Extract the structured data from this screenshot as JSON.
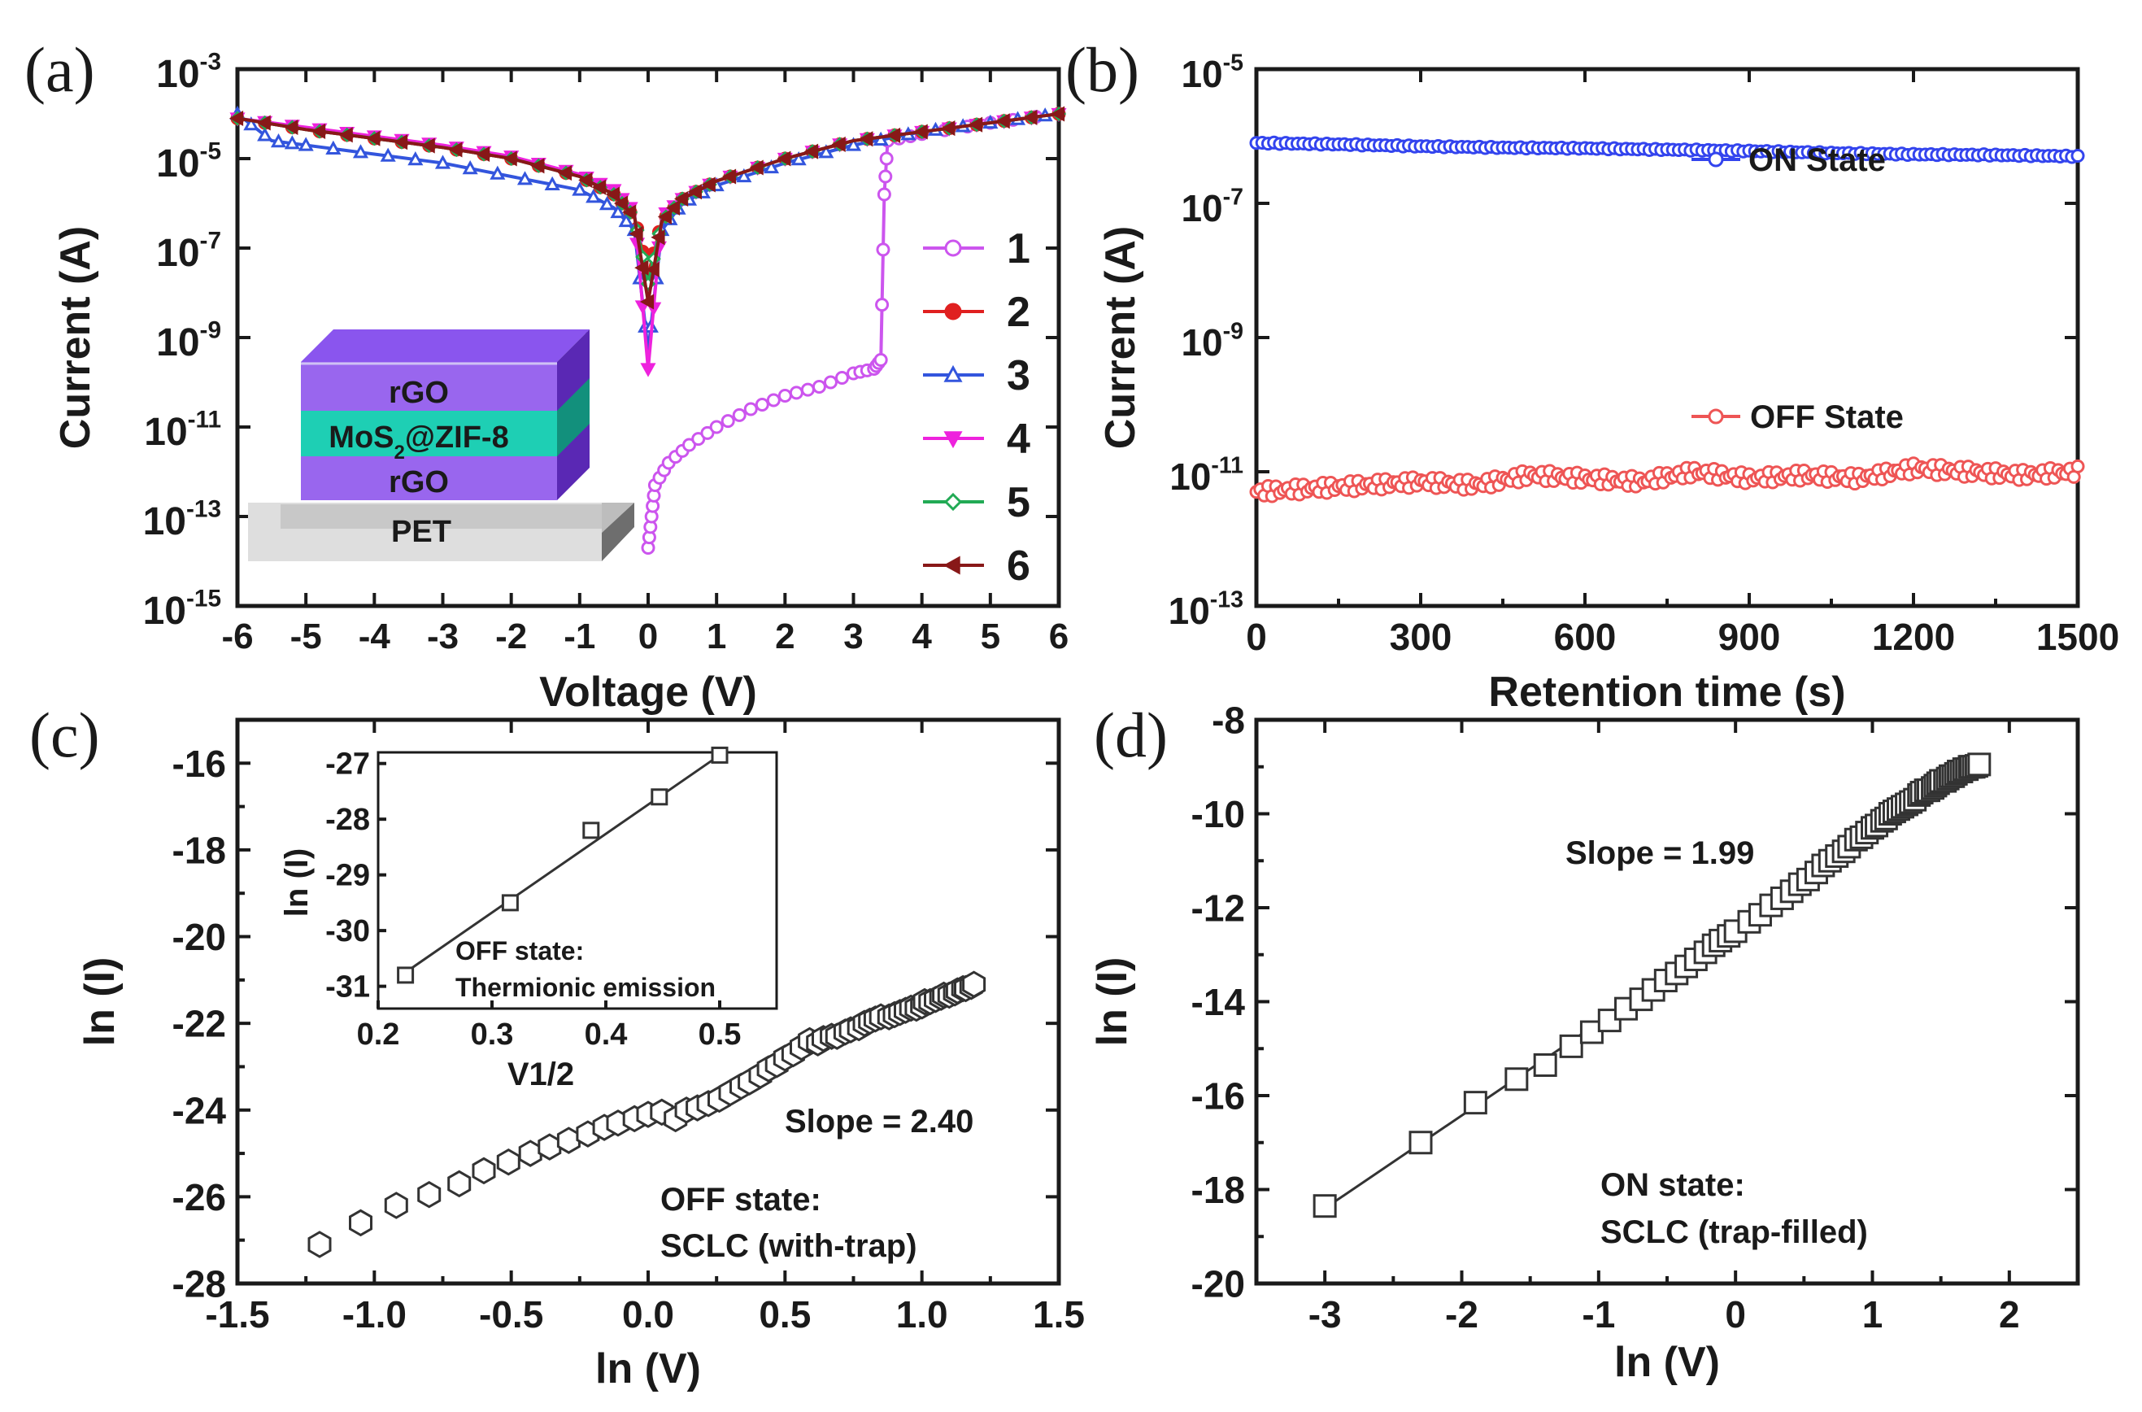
{
  "figure": {
    "panel_labels": [
      "(a)",
      "(b)",
      "(c)",
      "(d)"
    ]
  },
  "inset_device": {
    "layers": [
      "rGO",
      "MoS2@ZIF-8",
      "rGO",
      "PET"
    ],
    "colors": {
      "rgo": "#9966ee",
      "mos2": "#1ecfb4",
      "pet": "#dedede"
    }
  },
  "chart_data": [
    {
      "panel": "(a)",
      "type": "line",
      "xlabel": "Voltage (V)",
      "ylabel": "Current (A)",
      "yscale": "log",
      "xlim": [
        -6,
        6
      ],
      "ylim_exp": [
        -15,
        -3
      ],
      "xticks": [
        -6,
        -5,
        -4,
        -3,
        -2,
        -1,
        0,
        1,
        2,
        3,
        4,
        5,
        6
      ],
      "yticks_exp": [
        -15,
        -13,
        -11,
        -9,
        -7,
        -5,
        -3
      ],
      "legend": [
        "1",
        "2",
        "3",
        "4",
        "5",
        "6"
      ],
      "series": [
        {
          "name": "1",
          "color": "#cc55ee",
          "marker": "circle",
          "x": [
            0.0,
            0.05,
            0.1,
            0.3,
            0.6,
            1.0,
            1.5,
            2.0,
            2.5,
            3.0,
            3.3,
            3.4,
            3.45,
            3.5,
            4.0,
            5.0,
            6.0
          ],
          "y_exp": [
            -13.7,
            -13.0,
            -12.3,
            -11.8,
            -11.4,
            -11.0,
            -10.6,
            -10.3,
            -10.1,
            -9.8,
            -9.7,
            -9.5,
            -5.8,
            -4.6,
            -4.45,
            -4.2,
            -4.0
          ]
        },
        {
          "name": "2",
          "color": "#e02020",
          "marker": "filled-circle",
          "x": [
            -6.0,
            -5.0,
            -4.0,
            -3.0,
            -2.0,
            -1.0,
            -0.5,
            -0.2,
            0.0,
            0.2,
            0.5,
            1.0,
            2.0,
            3.0,
            4.0,
            5.0,
            6.0
          ],
          "y_exp": [
            -4.1,
            -4.35,
            -4.55,
            -4.75,
            -5.0,
            -5.4,
            -5.8,
            -6.3,
            -7.6,
            -6.4,
            -5.9,
            -5.5,
            -5.0,
            -4.6,
            -4.4,
            -4.2,
            -4.0
          ]
        },
        {
          "name": "3",
          "color": "#3355dd",
          "marker": "triangle-up",
          "x": [
            -6.0,
            -5.5,
            -5.0,
            -4.0,
            -3.0,
            -2.0,
            -1.0,
            -0.5,
            -0.2,
            0.0,
            0.2,
            0.5,
            1.0,
            2.0,
            3.0,
            4.0,
            5.0,
            6.0
          ],
          "y_exp": [
            -4.0,
            -4.6,
            -4.7,
            -4.9,
            -5.1,
            -5.4,
            -5.7,
            -6.1,
            -6.6,
            -9.3,
            -6.6,
            -6.0,
            -5.6,
            -5.1,
            -4.7,
            -4.4,
            -4.2,
            -4.0
          ]
        },
        {
          "name": "4",
          "color": "#ee22dd",
          "marker": "triangle-down",
          "x": [
            -6.0,
            -5.0,
            -4.0,
            -3.0,
            -2.0,
            -1.0,
            -0.5,
            -0.2,
            0.0,
            0.2,
            0.5,
            1.0,
            2.0,
            3.0,
            4.0,
            5.0,
            6.0
          ],
          "y_exp": [
            -4.1,
            -4.3,
            -4.5,
            -4.7,
            -4.95,
            -5.35,
            -5.7,
            -6.2,
            -9.7,
            -6.3,
            -5.9,
            -5.5,
            -5.0,
            -4.6,
            -4.4,
            -4.2,
            -4.0
          ]
        },
        {
          "name": "5",
          "color": "#22aa55",
          "marker": "diamond",
          "x": [
            -6.0,
            -5.0,
            -4.0,
            -3.0,
            -2.0,
            -1.0,
            -0.5,
            -0.2,
            0.0,
            0.2,
            0.5,
            1.0,
            2.0,
            3.0,
            4.0,
            5.0,
            6.0
          ],
          "y_exp": [
            -4.1,
            -4.35,
            -4.55,
            -4.75,
            -5.0,
            -5.4,
            -5.8,
            -6.3,
            -7.8,
            -6.4,
            -5.9,
            -5.5,
            -5.0,
            -4.6,
            -4.4,
            -4.2,
            -4.0
          ]
        },
        {
          "name": "6",
          "color": "#881818",
          "marker": "triangle-left",
          "x": [
            -6.0,
            -5.0,
            -4.0,
            -3.0,
            -2.0,
            -1.0,
            -0.5,
            -0.2,
            0.0,
            0.2,
            0.5,
            1.0,
            2.0,
            3.0,
            4.0,
            5.0,
            6.0
          ],
          "y_exp": [
            -4.1,
            -4.35,
            -4.55,
            -4.75,
            -5.0,
            -5.4,
            -5.8,
            -6.3,
            -8.2,
            -6.4,
            -5.9,
            -5.5,
            -5.0,
            -4.6,
            -4.4,
            -4.2,
            -4.0
          ]
        }
      ]
    },
    {
      "panel": "(b)",
      "type": "line",
      "xlabel": "Retention time (s)",
      "ylabel": "Current (A)",
      "yscale": "log",
      "xlim": [
        0,
        1500
      ],
      "ylim_exp": [
        -13,
        -5
      ],
      "xticks": [
        0,
        300,
        600,
        900,
        1200,
        1500
      ],
      "yticks_exp": [
        -13,
        -11,
        -9,
        -7,
        -5
      ],
      "series": [
        {
          "name": "ON State",
          "color": "#3344ee",
          "marker": "circle",
          "x": [
            0,
            150,
            300,
            450,
            600,
            750,
            900,
            1050,
            1200,
            1350,
            1500
          ],
          "y_exp": [
            -6.1,
            -6.12,
            -6.15,
            -6.17,
            -6.18,
            -6.2,
            -6.22,
            -6.25,
            -6.27,
            -6.28,
            -6.3
          ]
        },
        {
          "name": "OFF State",
          "color": "#ee5555",
          "marker": "circle",
          "x": [
            0,
            100,
            200,
            300,
            400,
            500,
            600,
            700,
            800,
            900,
            1000,
            1100,
            1200,
            1300,
            1400,
            1500
          ],
          "y_exp": [
            -11.3,
            -11.25,
            -11.2,
            -11.15,
            -11.2,
            -11.05,
            -11.1,
            -11.15,
            -11.0,
            -11.1,
            -11.05,
            -11.1,
            -10.95,
            -11.0,
            -11.05,
            -11.0
          ]
        }
      ]
    },
    {
      "panel": "(c)",
      "type": "scatter",
      "xlabel": "ln (V)",
      "ylabel": "ln (I)",
      "xlim": [
        -1.5,
        1.5
      ],
      "ylim": [
        -28,
        -15
      ],
      "xticks": [
        -1.5,
        -1.0,
        -0.5,
        0.0,
        0.5,
        1.0,
        1.5
      ],
      "xtick_labels": [
        "-1.5",
        "-1.0",
        "-0.5",
        "0.0",
        "0.5",
        "1.0",
        "1.5"
      ],
      "yticks": [
        -28,
        -26,
        -24,
        -22,
        -20,
        -18,
        -16
      ],
      "annotations": {
        "slope": "Slope = 2.40",
        "state": "OFF state:",
        "mechanism": "SCLC (with-trap)"
      },
      "series": [
        {
          "name": "OFF state",
          "marker": "hexagon",
          "x": [
            -1.2,
            -1.05,
            -0.92,
            -0.8,
            -0.69,
            -0.6,
            -0.51,
            -0.43,
            -0.36,
            -0.29,
            -0.22,
            -0.16,
            -0.11,
            -0.05,
            0.0,
            0.05,
            0.1,
            0.14,
            0.18,
            0.22,
            0.26,
            0.3,
            0.34,
            0.37,
            0.41,
            0.44,
            0.47,
            0.5,
            0.53,
            0.56,
            0.59,
            0.62,
            0.64,
            0.67,
            0.69,
            0.72,
            0.74,
            0.77,
            0.79,
            0.81,
            0.83,
            0.85,
            0.88,
            0.9,
            0.92,
            0.94,
            0.96,
            0.98,
            1.0,
            1.01,
            1.03,
            1.05,
            1.07,
            1.08,
            1.1,
            1.12,
            1.13,
            1.15,
            1.16,
            1.18,
            1.19
          ],
          "y": [
            -27.1,
            -26.6,
            -26.2,
            -25.95,
            -25.7,
            -25.4,
            -25.2,
            -25.0,
            -24.85,
            -24.7,
            -24.55,
            -24.4,
            -24.3,
            -24.2,
            -24.1,
            -24.05,
            -24.2,
            -24.0,
            -23.95,
            -23.85,
            -23.75,
            -23.6,
            -23.45,
            -23.35,
            -23.2,
            -23.05,
            -22.95,
            -22.8,
            -22.7,
            -22.55,
            -22.4,
            -22.45,
            -22.35,
            -22.3,
            -22.3,
            -22.2,
            -22.15,
            -22.1,
            -22.0,
            -21.95,
            -21.9,
            -21.85,
            -21.85,
            -21.8,
            -21.75,
            -21.7,
            -21.65,
            -21.65,
            -21.6,
            -21.5,
            -21.5,
            -21.45,
            -21.4,
            -21.35,
            -21.35,
            -21.3,
            -21.25,
            -21.2,
            -21.2,
            -21.15,
            -21.1
          ]
        }
      ],
      "inset": {
        "xlabel": "V1/2",
        "ylabel": "ln (I)",
        "xlim": [
          0.2,
          0.55
        ],
        "ylim": [
          -31.4,
          -26.8
        ],
        "xticks": [
          0.2,
          0.3,
          0.4,
          0.5
        ],
        "xtick_labels": [
          "0.2",
          "0.3",
          "0.4",
          "0.5"
        ],
        "yticks": [
          -31,
          -30,
          -29,
          -28,
          -27
        ],
        "annotations": {
          "state": "OFF state:",
          "mechanism": "Thermionic emission"
        },
        "x": [
          0.224,
          0.316,
          0.387,
          0.447,
          0.5
        ],
        "y": [
          -30.8,
          -29.5,
          -28.2,
          -27.6,
          -26.85
        ],
        "fit": {
          "x": [
            0.224,
            0.5
          ],
          "y": [
            -30.75,
            -26.85
          ]
        }
      }
    },
    {
      "panel": "(d)",
      "type": "scatter",
      "xlabel": "ln (V)",
      "ylabel": "ln (I)",
      "xlim": [
        -3.5,
        2.5
      ],
      "ylim": [
        -20,
        -8
      ],
      "xticks": [
        -3,
        -2,
        -1,
        0,
        1,
        2
      ],
      "yticks": [
        -20,
        -18,
        -16,
        -14,
        -12,
        -10,
        -8
      ],
      "annotations": {
        "slope": "Slope = 1.99",
        "state": "ON state:",
        "mechanism": "SCLC (trap-filled)"
      },
      "series": [
        {
          "name": "ON state",
          "marker": "square",
          "x": [
            -3.0,
            -2.3,
            -1.9,
            -1.6,
            -1.39,
            -1.2,
            -1.05,
            -0.92,
            -0.8,
            -0.69,
            -0.6,
            -0.51,
            -0.43,
            -0.36,
            -0.29,
            -0.22,
            -0.16,
            -0.11,
            -0.05,
            0.0,
            0.1,
            0.18,
            0.26,
            0.34,
            0.41,
            0.47,
            0.53,
            0.59,
            0.64,
            0.69,
            0.74,
            0.79,
            0.83,
            0.88,
            0.92,
            0.96,
            1.0,
            1.03,
            1.07,
            1.1,
            1.13,
            1.16,
            1.19,
            1.22,
            1.25,
            1.28,
            1.31,
            1.34,
            1.36,
            1.39,
            1.41,
            1.44,
            1.46,
            1.48,
            1.5,
            1.53,
            1.55,
            1.57,
            1.59,
            1.61,
            1.63,
            1.65,
            1.67,
            1.69,
            1.71,
            1.72,
            1.74,
            1.76,
            1.78
          ],
          "y": [
            -18.35,
            -17.0,
            -16.15,
            -15.65,
            -15.35,
            -14.95,
            -14.65,
            -14.4,
            -14.15,
            -13.95,
            -13.75,
            -13.55,
            -13.4,
            -13.25,
            -13.1,
            -12.95,
            -12.8,
            -12.7,
            -12.6,
            -12.5,
            -12.3,
            -12.15,
            -11.95,
            -11.8,
            -11.65,
            -11.5,
            -11.4,
            -11.25,
            -11.1,
            -11.0,
            -10.9,
            -10.8,
            -10.7,
            -10.55,
            -10.5,
            -10.4,
            -10.3,
            -10.25,
            -10.15,
            -10.1,
            -10.0,
            -9.95,
            -9.9,
            -9.85,
            -9.8,
            -9.75,
            -9.7,
            -9.6,
            -9.55,
            -9.5,
            -9.5,
            -9.45,
            -9.4,
            -9.35,
            -9.3,
            -9.3,
            -9.25,
            -9.2,
            -9.2,
            -9.15,
            -9.1,
            -9.1,
            -9.05,
            -9.05,
            -9.0,
            -9.0,
            -9.0,
            -8.98,
            -8.95
          ]
        }
      ],
      "fit": {
        "x": [
          -3.0,
          1.78
        ],
        "y": [
          -18.4,
          -8.95
        ]
      }
    }
  ]
}
